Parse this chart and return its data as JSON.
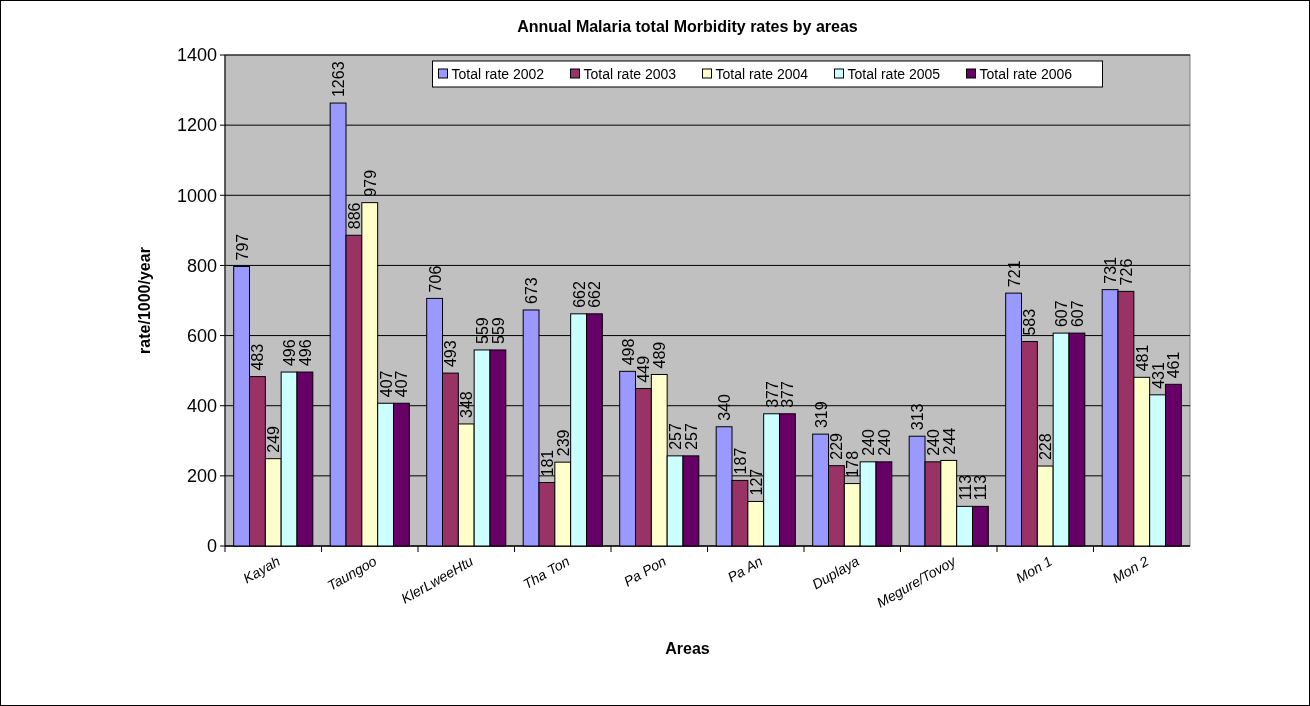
{
  "chart_data": {
    "type": "bar",
    "title": "Annual Malaria total Morbidity rates by areas",
    "xlabel": "Areas",
    "ylabel": "rate/1000/year",
    "categories": [
      "Kayah",
      "Taungoo",
      "KlerLweeHtu",
      "Tha Ton",
      "Pa Pon",
      "Pa An",
      "Duplaya",
      "Megure/Tovoy",
      "Mon 1",
      "Mon 2"
    ],
    "series": [
      {
        "name": "Total rate 2002",
        "color": "#9999ff",
        "values": [
          797,
          1263,
          706,
          673,
          498,
          340,
          319,
          313,
          721,
          731
        ]
      },
      {
        "name": "Total rate 2003",
        "color": "#993366",
        "values": [
          483,
          886,
          493,
          181,
          449,
          187,
          229,
          240,
          583,
          726
        ]
      },
      {
        "name": "Total rate 2004",
        "color": "#ffffcc",
        "values": [
          249,
          979,
          348,
          239,
          489,
          127,
          178,
          244,
          228,
          481
        ]
      },
      {
        "name": "Total rate 2005",
        "color": "#ccffff",
        "values": [
          496,
          407,
          559,
          662,
          257,
          377,
          240,
          113,
          607,
          431
        ]
      },
      {
        "name": "Total rate 2006",
        "color": "#660066",
        "values": [
          496,
          407,
          559,
          662,
          257,
          377,
          240,
          113,
          607,
          461
        ]
      }
    ],
    "ylim": [
      0,
      1400
    ],
    "yticks": [
      0,
      200,
      400,
      600,
      800,
      1000,
      1200,
      1400
    ],
    "grid": "y",
    "legend": "top",
    "data_labels": true
  }
}
